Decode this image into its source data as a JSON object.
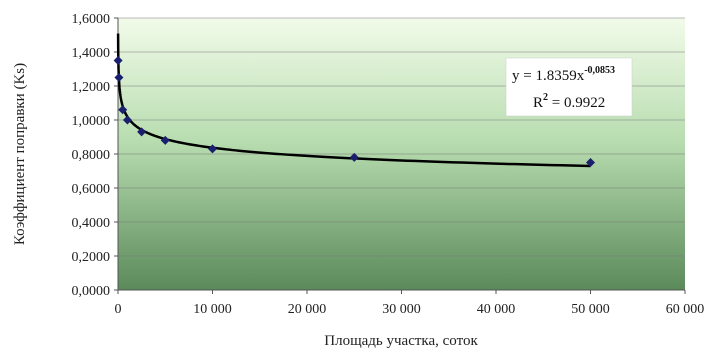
{
  "chart_data": {
    "type": "scatter",
    "xlabel": "Площадь участка, соток",
    "ylabel": "Коэффициент поправки (Ks)",
    "xlim": [
      0,
      60000
    ],
    "ylim": [
      0,
      1.6
    ],
    "x_ticks": [
      0,
      10000,
      20000,
      30000,
      40000,
      50000,
      60000
    ],
    "x_tick_labels": [
      "0",
      "10 000",
      "20 000",
      "30 000",
      "40 000",
      "50 000",
      "60 000"
    ],
    "y_ticks": [
      0,
      0.2,
      0.4,
      0.6,
      0.8,
      1.0,
      1.2,
      1.4,
      1.6
    ],
    "y_tick_labels": [
      "0,0000",
      "0,2000",
      "0,4000",
      "0,6000",
      "0,8000",
      "1,0000",
      "1,2000",
      "1,4000",
      "1,6000"
    ],
    "grid": "horizontal",
    "background_gradient": [
      "#f2fbe9",
      "#5b8a5a"
    ],
    "point_color": "#1a1f6e",
    "series": [
      {
        "x": [
          10,
          100,
          500,
          1000,
          2500,
          5000,
          10000,
          25000,
          50000
        ],
        "y": [
          1.35,
          1.25,
          1.06,
          1.0,
          0.93,
          0.88,
          0.83,
          0.78,
          0.75
        ]
      }
    ],
    "trendline": {
      "type": "power",
      "coefficient": 1.8359,
      "exponent": -0.0853,
      "x_start": 10,
      "x_end": 50000,
      "color": "#000000"
    },
    "annotation": {
      "equation_main": "y = 1.8359x",
      "equation_exp": "-0,0853",
      "r2_main": "R",
      "r2_exp": "2",
      "r2_rest": " = 0.9922",
      "position": "top-right"
    }
  }
}
